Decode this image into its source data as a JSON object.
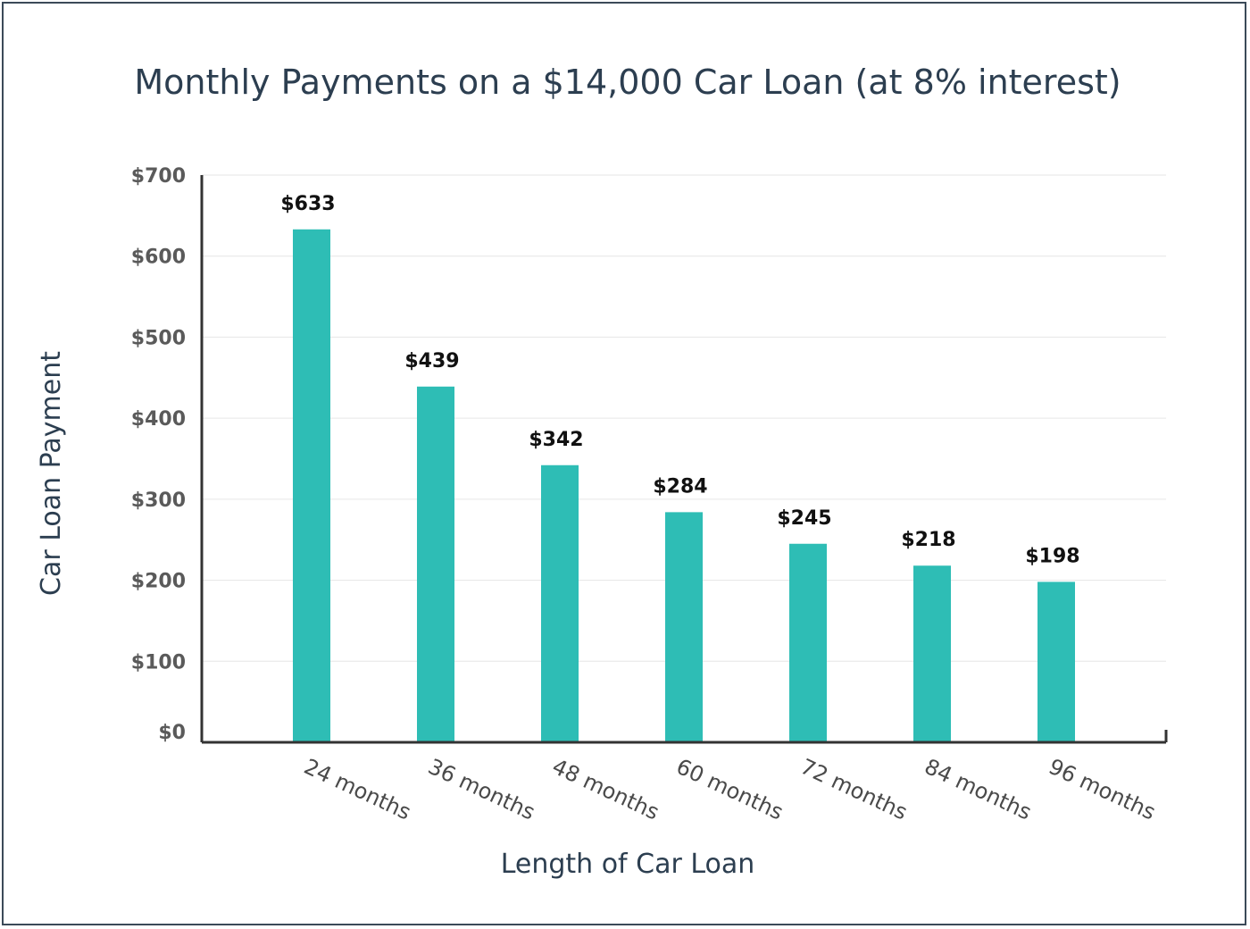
{
  "chart_data": {
    "type": "bar",
    "title": "Monthly Payments on a $14,000 Car Loan (at 8% interest)",
    "xlabel": "Length of Car Loan",
    "ylabel": "Car Loan Payment",
    "categories": [
      "24 months",
      "36 months",
      "48 months",
      "60 months",
      "72 months",
      "84 months",
      "96 months"
    ],
    "values": [
      633,
      439,
      342,
      284,
      245,
      218,
      198
    ],
    "value_labels": [
      "$633",
      "$439",
      "$342",
      "$284",
      "$245",
      "$218",
      "$198"
    ],
    "ylim": [
      0,
      700
    ],
    "yticks": [
      0,
      100,
      200,
      300,
      400,
      500,
      600,
      700
    ],
    "ytick_labels": [
      "$0",
      "$100",
      "$200",
      "$300",
      "$400",
      "$500",
      "$600",
      "$700"
    ],
    "bar_color": "#2ebdb5",
    "grid": true,
    "legend": false
  }
}
